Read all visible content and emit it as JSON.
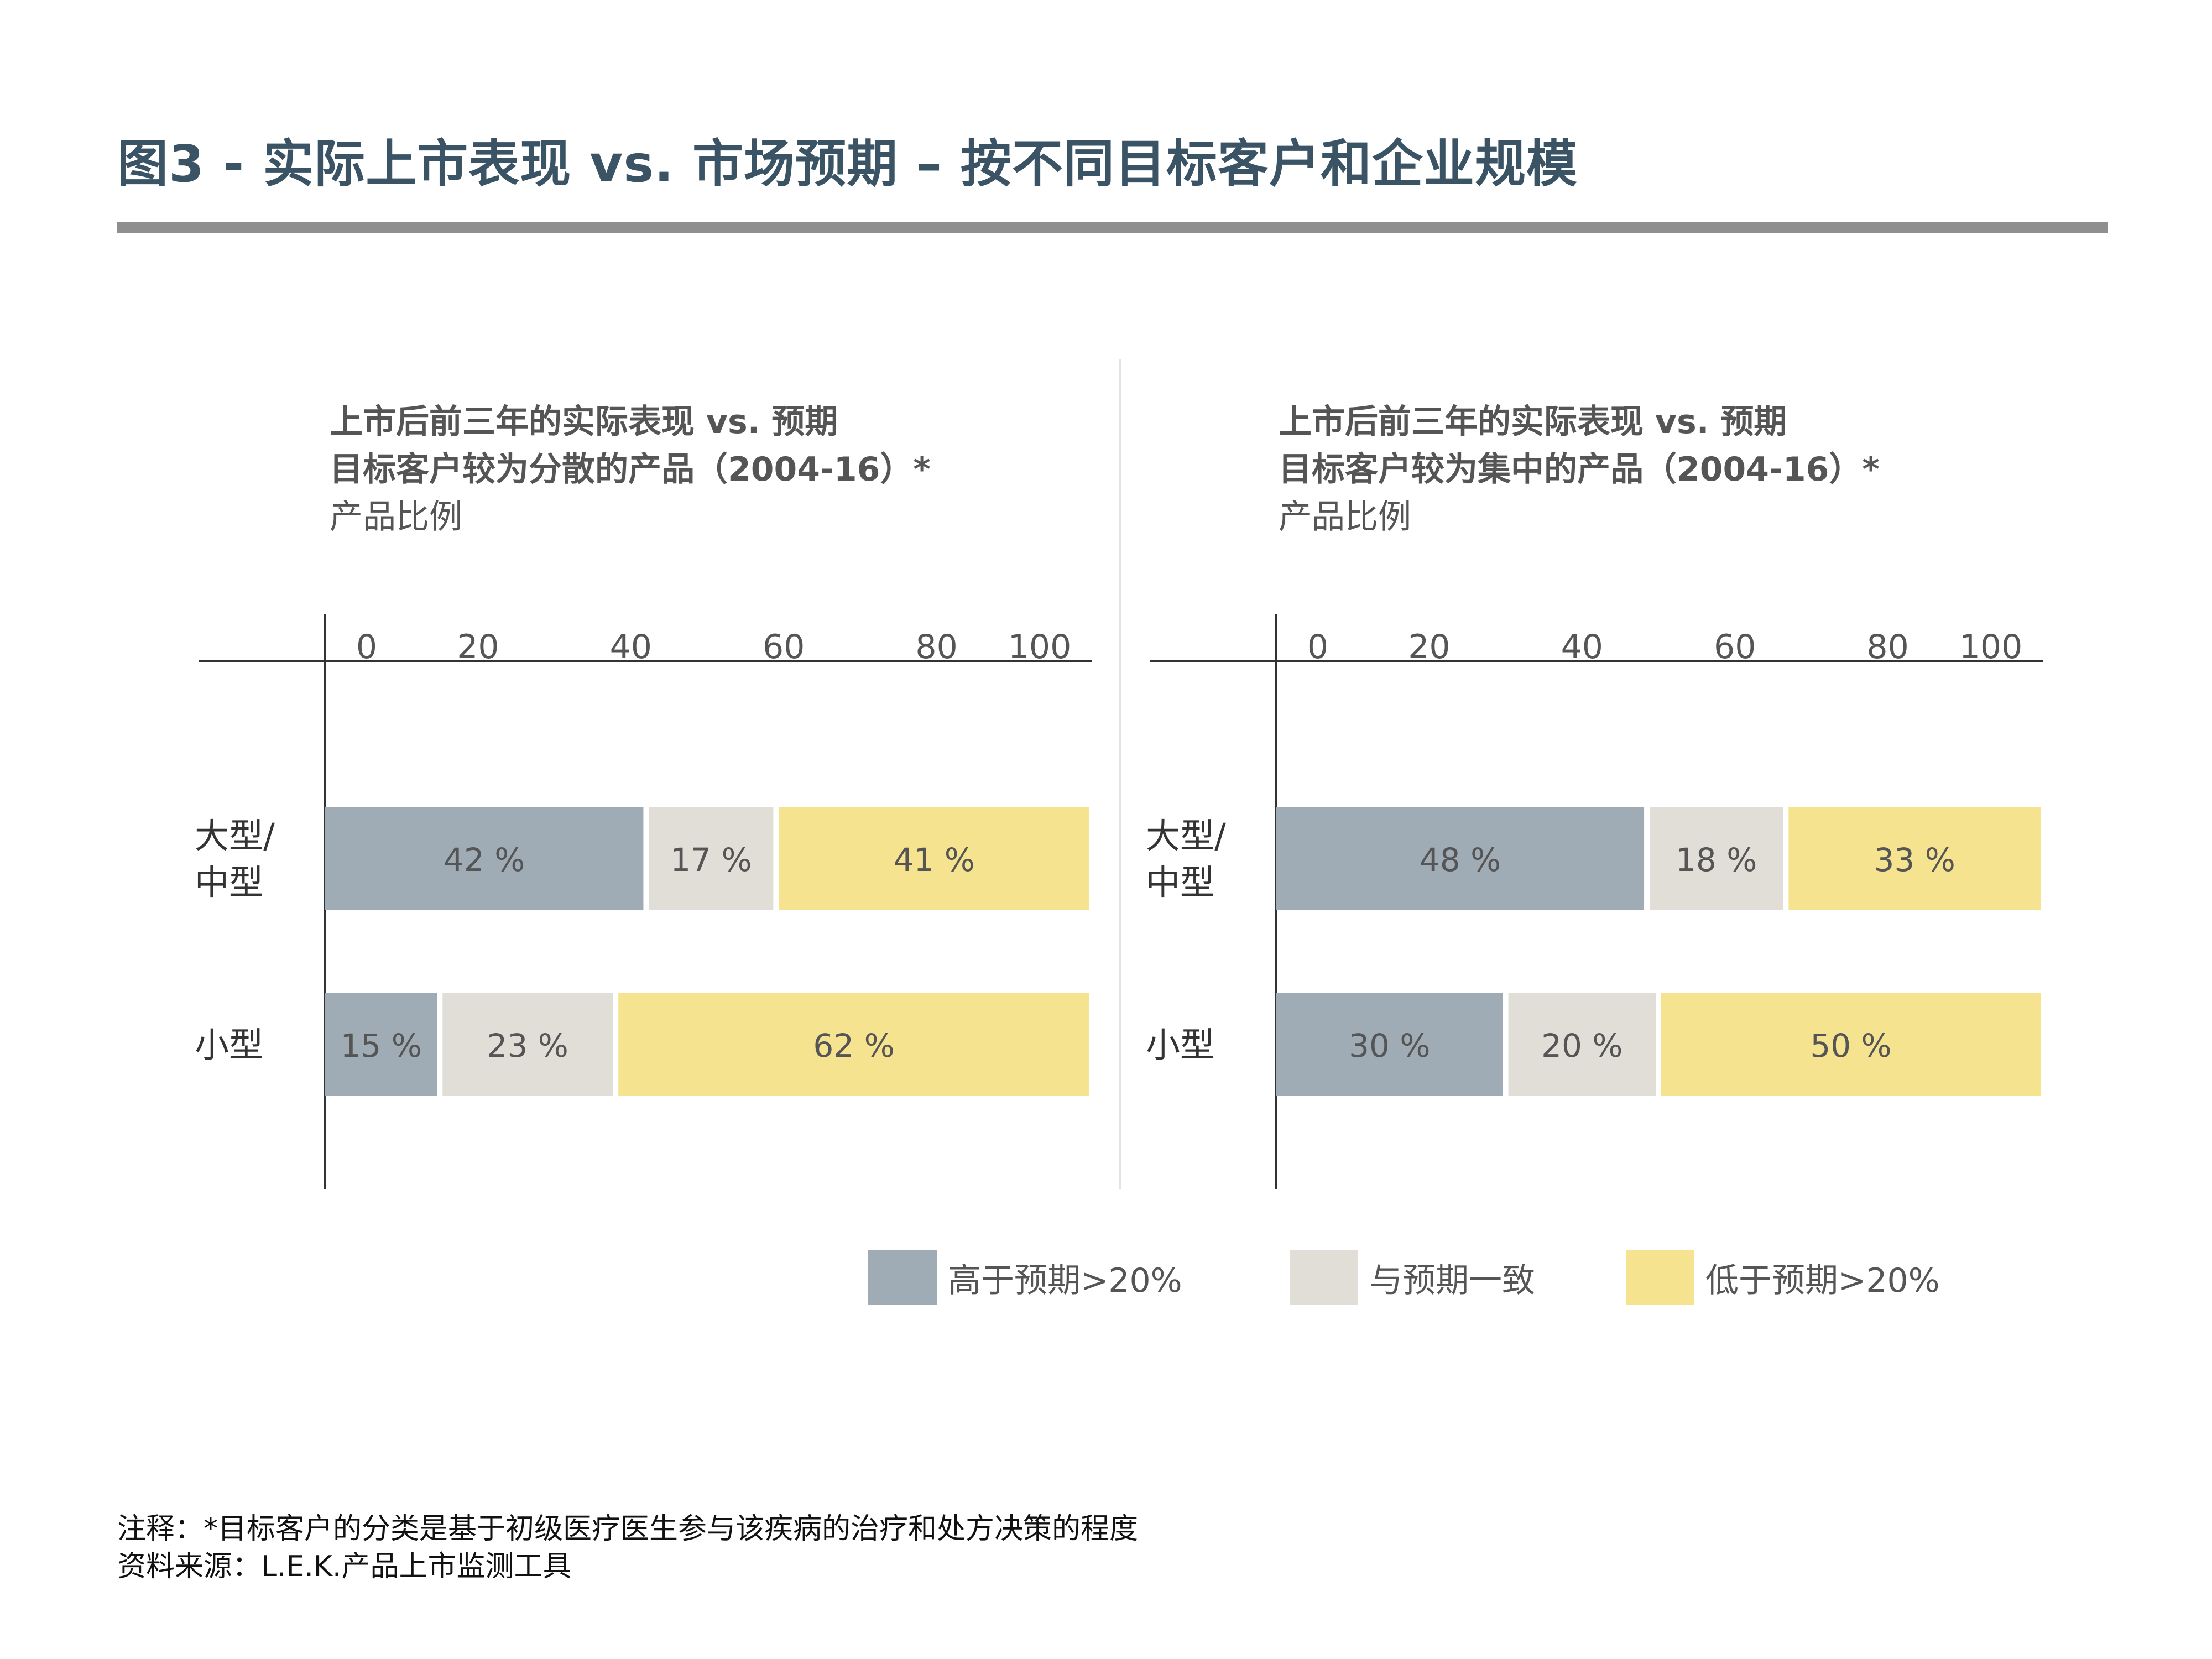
{
  "title": "图3 - 实际上市表现 vs. 市场预期 – 按不同目标客户和企业规模",
  "colors": {
    "above": "#a0acb5",
    "inline": "#e1ddd7",
    "below": "#f6e38f",
    "axis": "#333333"
  },
  "legend": {
    "above": "高于预期>20%",
    "inline": "与预期一致",
    "below": "低于预期>20%"
  },
  "notes": {
    "note": "注释：*目标客户的分类是基于初级医疗医生参与该疾病的治疗和处方决策的程度",
    "source": "资料来源：L.E.K.产品上市监测工具"
  },
  "chart_data": [
    {
      "type": "bar",
      "orientation": "horizontal-stacked",
      "title_line1": "上市后前三年的实际表现 vs. 预期",
      "title_line2": "目标客户较为分散的产品（2004-16）*",
      "subtitle": "产品比例",
      "xlim": [
        0,
        100
      ],
      "ticks": [
        "0",
        "20",
        "40",
        "60",
        "80",
        "100"
      ],
      "categories": [
        "大型/\n中型",
        "小型"
      ],
      "series": [
        {
          "name": "高于预期>20%",
          "values": [
            42,
            15
          ],
          "labels": [
            "42 %",
            "15 %"
          ]
        },
        {
          "name": "与预期一致",
          "values": [
            17,
            23
          ],
          "labels": [
            "17 %",
            "23 %"
          ]
        },
        {
          "name": "低于预期>20%",
          "values": [
            41,
            62
          ],
          "labels": [
            "41 %",
            "62 %"
          ]
        }
      ]
    },
    {
      "type": "bar",
      "orientation": "horizontal-stacked",
      "title_line1": "上市后前三年的实际表现 vs. 预期",
      "title_line2": "目标客户较为集中的产品（2004-16）*",
      "subtitle": "产品比例",
      "xlim": [
        0,
        100
      ],
      "ticks": [
        "0",
        "20",
        "40",
        "60",
        "80",
        "100"
      ],
      "categories": [
        "大型/\n中型",
        "小型"
      ],
      "series": [
        {
          "name": "高于预期>20%",
          "values": [
            48,
            30
          ],
          "labels": [
            "48 %",
            "30 %"
          ]
        },
        {
          "name": "与预期一致",
          "values": [
            18,
            20
          ],
          "labels": [
            "18 %",
            "20 %"
          ]
        },
        {
          "name": "低于预期>20%",
          "values": [
            33,
            50
          ],
          "labels": [
            "33 %",
            "50 %"
          ]
        }
      ]
    }
  ]
}
